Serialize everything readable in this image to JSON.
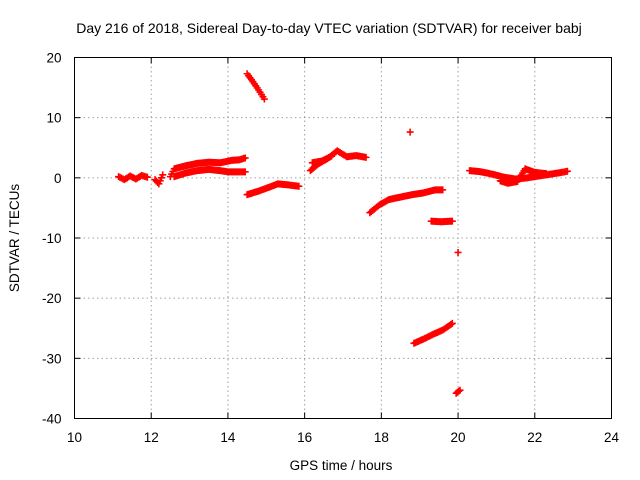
{
  "chart_data": {
    "type": "scatter",
    "title": "Day 216 of 2018, Sidereal Day-to-day VTEC variation (SDTVAR) for receiver babj",
    "xlabel": "GPS time / hours",
    "ylabel": "SDTVAR / TECUs",
    "xlim": [
      10,
      24
    ],
    "ylim": [
      -40,
      20
    ],
    "x_ticks": [
      "10",
      "12",
      "14",
      "16",
      "18",
      "20",
      "22",
      "24"
    ],
    "y_ticks": [
      "20",
      "10",
      "0",
      "-10",
      "-20",
      "-30",
      "-40"
    ],
    "grid": true,
    "marker": "plus",
    "series_color": "#ff0000",
    "segments": [
      {
        "name": "arc-1",
        "points": [
          [
            11.15,
            0.2
          ],
          [
            11.3,
            -0.3
          ],
          [
            11.45,
            0.3
          ],
          [
            11.6,
            -0.2
          ],
          [
            11.75,
            0.4
          ],
          [
            11.9,
            0.1
          ]
        ]
      },
      {
        "name": "arc-2",
        "points": [
          [
            12.1,
            -0.3
          ],
          [
            12.2,
            -1.0
          ],
          [
            12.3,
            0.5
          ]
        ]
      },
      {
        "name": "arc-3",
        "points": [
          [
            12.5,
            0.2
          ],
          [
            12.6,
            1.5
          ],
          [
            12.9,
            2.0
          ],
          [
            13.2,
            2.4
          ],
          [
            13.5,
            2.6
          ],
          [
            13.8,
            2.5
          ],
          [
            14.1,
            2.9
          ],
          [
            14.3,
            3.0
          ],
          [
            14.45,
            3.3
          ]
        ]
      },
      {
        "name": "arc-4",
        "points": [
          [
            12.6,
            0.2
          ],
          [
            12.9,
            0.8
          ],
          [
            13.2,
            1.2
          ],
          [
            13.5,
            1.4
          ],
          [
            13.8,
            1.2
          ],
          [
            14.0,
            1.0
          ],
          [
            14.3,
            1.0
          ],
          [
            14.45,
            1.0
          ]
        ]
      },
      {
        "name": "arc-5",
        "points": [
          [
            14.5,
            17.3
          ],
          [
            14.65,
            16.0
          ],
          [
            14.8,
            14.6
          ],
          [
            14.95,
            13.1
          ]
        ]
      },
      {
        "name": "arc-6",
        "points": [
          [
            14.5,
            -2.8
          ],
          [
            14.8,
            -2.2
          ],
          [
            15.1,
            -1.5
          ],
          [
            15.3,
            -1.0
          ],
          [
            15.6,
            -1.2
          ],
          [
            15.85,
            -1.4
          ]
        ]
      },
      {
        "name": "arc-7",
        "points": [
          [
            16.15,
            1.2
          ],
          [
            16.35,
            2.3
          ],
          [
            16.6,
            3.2
          ],
          [
            16.85,
            4.5
          ],
          [
            17.1,
            3.5
          ],
          [
            17.35,
            3.7
          ],
          [
            17.6,
            3.4
          ]
        ]
      },
      {
        "name": "arc-8",
        "points": [
          [
            16.2,
            2.5
          ],
          [
            16.45,
            2.8
          ],
          [
            16.7,
            3.6
          ]
        ]
      },
      {
        "name": "arc-9",
        "points": [
          [
            17.7,
            -5.8
          ],
          [
            17.95,
            -4.5
          ],
          [
            18.2,
            -3.6
          ],
          [
            18.5,
            -3.2
          ],
          [
            18.8,
            -2.8
          ],
          [
            19.1,
            -2.5
          ],
          [
            19.4,
            -2.0
          ],
          [
            19.6,
            -2.0
          ]
        ]
      },
      {
        "name": "arc-10",
        "points": [
          [
            18.75,
            7.6
          ]
        ]
      },
      {
        "name": "arc-11",
        "points": [
          [
            19.3,
            -7.2
          ],
          [
            19.55,
            -7.3
          ],
          [
            19.85,
            -7.2
          ]
        ]
      },
      {
        "name": "arc-12",
        "points": [
          [
            18.85,
            -27.5
          ],
          [
            19.1,
            -26.8
          ],
          [
            19.35,
            -26.0
          ],
          [
            19.6,
            -25.3
          ],
          [
            19.85,
            -24.2
          ]
        ]
      },
      {
        "name": "arc-13",
        "points": [
          [
            20.0,
            -12.4
          ]
        ]
      },
      {
        "name": "arc-14",
        "points": [
          [
            19.95,
            -35.8
          ],
          [
            20.05,
            -35.3
          ]
        ]
      },
      {
        "name": "arc-15",
        "points": [
          [
            20.3,
            1.2
          ],
          [
            20.6,
            1.0
          ],
          [
            20.9,
            0.6
          ],
          [
            21.2,
            0.1
          ],
          [
            21.5,
            -0.2
          ],
          [
            21.8,
            0.0
          ],
          [
            22.1,
            0.3
          ],
          [
            22.4,
            0.6
          ],
          [
            22.7,
            0.9
          ],
          [
            22.85,
            1.1
          ]
        ]
      },
      {
        "name": "arc-16",
        "points": [
          [
            21.1,
            -0.5
          ],
          [
            21.3,
            -0.9
          ],
          [
            21.55,
            -0.6
          ],
          [
            21.75,
            1.5
          ],
          [
            22.0,
            0.9
          ],
          [
            22.3,
            0.7
          ]
        ]
      }
    ]
  }
}
